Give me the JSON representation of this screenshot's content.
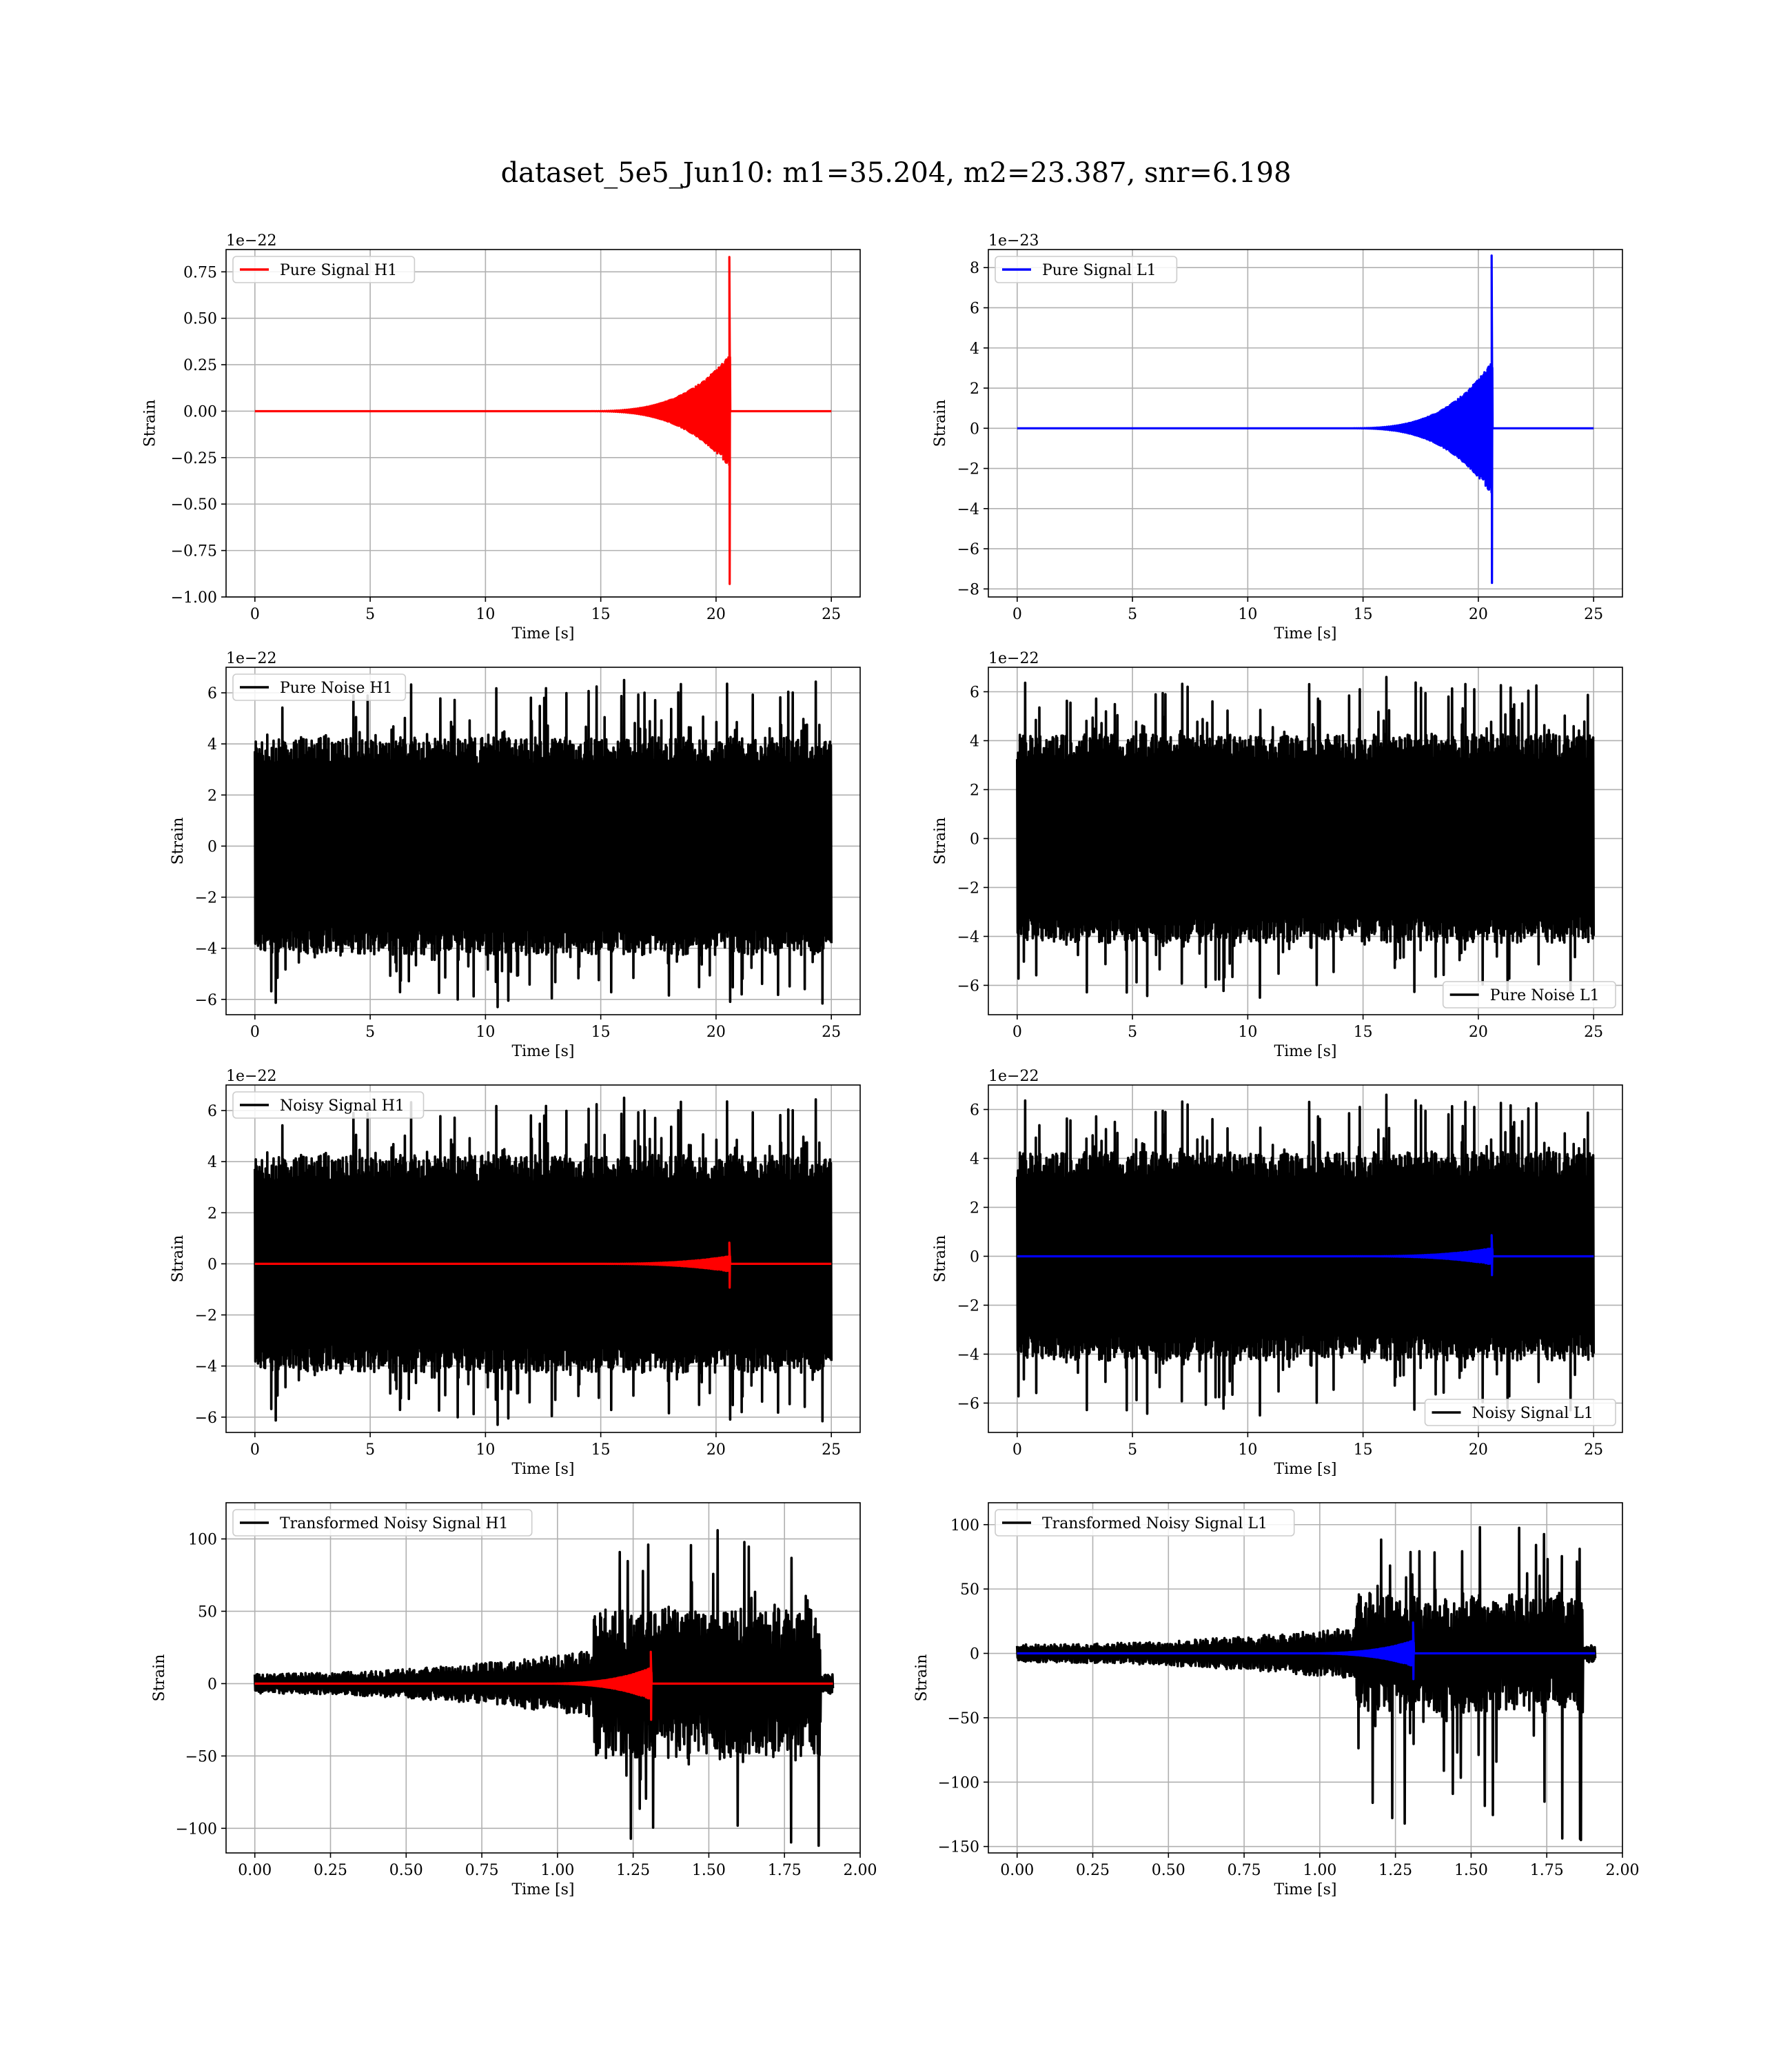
{
  "figure": {
    "suptitle": "dataset_5e5_Jun10: m1=35.204, m2=23.387, snr=6.198"
  },
  "colors": {
    "h1_signal": "#ff0000",
    "l1_signal": "#0000ff",
    "noise": "#000000"
  },
  "chart_data": [
    {
      "id": "pure-signal-h1",
      "type": "line",
      "xlabel": "Time [s]",
      "ylabel": "Strain",
      "offset_text": "1e−22",
      "xlim": [
        -1.25,
        26.25
      ],
      "ylim": [
        -1.0,
        0.87
      ],
      "xticks": [
        0,
        5,
        10,
        15,
        20,
        25
      ],
      "xtick_labels": [
        "0",
        "5",
        "10",
        "15",
        "20",
        "25"
      ],
      "yticks": [
        -1.0,
        -0.75,
        -0.5,
        -0.25,
        0.0,
        0.25,
        0.5,
        0.75
      ],
      "ytick_labels": [
        "−1.00",
        "−0.75",
        "−0.50",
        "−0.25",
        "0.00",
        "0.25",
        "0.50",
        "0.75"
      ],
      "grid": true,
      "legend_loc": "upper-left",
      "series": [
        {
          "name": "Pure Signal H1",
          "kind": "chirp",
          "color": "#ff0000",
          "x_range": [
            0,
            25
          ],
          "t_merge": 20.6,
          "peak_max": 0.83,
          "peak_min": -0.93,
          "inspiral_amp": 0.3,
          "onset": 14,
          "in_legend": true
        }
      ]
    },
    {
      "id": "pure-signal-l1",
      "type": "line",
      "xlabel": "Time [s]",
      "ylabel": "Strain",
      "offset_text": "1e−23",
      "xlim": [
        -1.25,
        26.25
      ],
      "ylim": [
        -8.4,
        8.9
      ],
      "xticks": [
        0,
        5,
        10,
        15,
        20,
        25
      ],
      "xtick_labels": [
        "0",
        "5",
        "10",
        "15",
        "20",
        "25"
      ],
      "yticks": [
        -8,
        -6,
        -4,
        -2,
        0,
        2,
        4,
        6,
        8
      ],
      "ytick_labels": [
        "−8",
        "−6",
        "−4",
        "−2",
        "0",
        "2",
        "4",
        "6",
        "8"
      ],
      "grid": true,
      "legend_loc": "upper-left",
      "series": [
        {
          "name": "Pure Signal L1",
          "kind": "chirp",
          "color": "#0000ff",
          "x_range": [
            0,
            25
          ],
          "t_merge": 20.6,
          "peak_max": 8.6,
          "peak_min": -7.7,
          "inspiral_amp": 3.3,
          "onset": 14,
          "in_legend": true
        }
      ]
    },
    {
      "id": "pure-noise-h1",
      "type": "line",
      "xlabel": "Time [s]",
      "ylabel": "Strain",
      "offset_text": "1e−22",
      "xlim": [
        -1.25,
        26.25
      ],
      "ylim": [
        -6.6,
        7.0
      ],
      "xticks": [
        0,
        5,
        10,
        15,
        20,
        25
      ],
      "xtick_labels": [
        "0",
        "5",
        "10",
        "15",
        "20",
        "25"
      ],
      "yticks": [
        -6,
        -4,
        -2,
        0,
        2,
        4,
        6
      ],
      "ytick_labels": [
        "−6",
        "−4",
        "−2",
        "0",
        "2",
        "4",
        "6"
      ],
      "grid": true,
      "legend_loc": "upper-left",
      "series": [
        {
          "name": "Pure Noise H1",
          "kind": "noise",
          "color": "#000000",
          "x_range": [
            0,
            25
          ],
          "band": 3.7,
          "spike_max": 6.5,
          "spike_min": -6.3,
          "seed": 11,
          "in_legend": true
        }
      ]
    },
    {
      "id": "pure-noise-l1",
      "type": "line",
      "xlabel": "Time [s]",
      "ylabel": "Strain",
      "offset_text": "1e−22",
      "xlim": [
        -1.25,
        26.25
      ],
      "ylim": [
        -7.2,
        7.0
      ],
      "xticks": [
        0,
        5,
        10,
        15,
        20,
        25
      ],
      "xtick_labels": [
        "0",
        "5",
        "10",
        "15",
        "20",
        "25"
      ],
      "yticks": [
        -6,
        -4,
        -2,
        0,
        2,
        4,
        6
      ],
      "ytick_labels": [
        "−6",
        "−4",
        "−2",
        "0",
        "2",
        "4",
        "6"
      ],
      "grid": true,
      "legend_loc": "lower-right",
      "series": [
        {
          "name": "Pure Noise L1",
          "kind": "noise",
          "color": "#000000",
          "x_range": [
            0,
            25
          ],
          "band": 3.7,
          "spike_max": 6.6,
          "spike_min": -6.5,
          "seed": 23,
          "in_legend": true
        }
      ]
    },
    {
      "id": "noisy-signal-h1",
      "type": "line",
      "xlabel": "Time [s]",
      "ylabel": "Strain",
      "offset_text": "1e−22",
      "xlim": [
        -1.25,
        26.25
      ],
      "ylim": [
        -6.6,
        7.0
      ],
      "xticks": [
        0,
        5,
        10,
        15,
        20,
        25
      ],
      "xtick_labels": [
        "0",
        "5",
        "10",
        "15",
        "20",
        "25"
      ],
      "yticks": [
        -6,
        -4,
        -2,
        0,
        2,
        4,
        6
      ],
      "ytick_labels": [
        "−6",
        "−4",
        "−2",
        "0",
        "2",
        "4",
        "6"
      ],
      "grid": true,
      "legend_loc": "upper-left",
      "series": [
        {
          "name": "Noisy Signal H1",
          "kind": "noise",
          "color": "#000000",
          "x_range": [
            0,
            25
          ],
          "band": 3.7,
          "spike_max": 6.5,
          "spike_min": -6.3,
          "seed": 11,
          "in_legend": true
        },
        {
          "name": "",
          "kind": "chirp",
          "color": "#ff0000",
          "x_range": [
            0,
            25
          ],
          "t_merge": 20.6,
          "peak_max": 0.83,
          "peak_min": -0.93,
          "inspiral_amp": 0.3,
          "onset": 14,
          "in_legend": false
        }
      ]
    },
    {
      "id": "noisy-signal-l1",
      "type": "line",
      "xlabel": "Time [s]",
      "ylabel": "Strain",
      "offset_text": "1e−22",
      "xlim": [
        -1.25,
        26.25
      ],
      "ylim": [
        -7.2,
        7.0
      ],
      "xticks": [
        0,
        5,
        10,
        15,
        20,
        25
      ],
      "xtick_labels": [
        "0",
        "5",
        "10",
        "15",
        "20",
        "25"
      ],
      "yticks": [
        -6,
        -4,
        -2,
        0,
        2,
        4,
        6
      ],
      "ytick_labels": [
        "−6",
        "−4",
        "−2",
        "0",
        "2",
        "4",
        "6"
      ],
      "grid": true,
      "legend_loc": "lower-right",
      "series": [
        {
          "name": "Noisy Signal L1",
          "kind": "noise",
          "color": "#000000",
          "x_range": [
            0,
            25
          ],
          "band": 3.7,
          "spike_max": 6.6,
          "spike_min": -6.5,
          "seed": 23,
          "in_legend": true
        },
        {
          "name": "",
          "kind": "chirp",
          "color": "#0000ff",
          "x_range": [
            0,
            25
          ],
          "t_merge": 20.6,
          "peak_max": 0.86,
          "peak_min": -0.77,
          "inspiral_amp": 0.33,
          "onset": 14,
          "in_legend": false
        }
      ]
    },
    {
      "id": "transformed-noisy-signal-h1",
      "type": "line",
      "xlabel": "Time [s]",
      "ylabel": "Strain",
      "offset_text": "",
      "xlim": [
        -0.095,
        2.0
      ],
      "ylim": [
        -117,
        125
      ],
      "xticks": [
        0.0,
        0.25,
        0.5,
        0.75,
        1.0,
        1.25,
        1.5,
        1.75,
        2.0
      ],
      "xtick_labels": [
        "0.00",
        "0.25",
        "0.50",
        "0.75",
        "1.00",
        "1.25",
        "1.50",
        "1.75",
        "2.00"
      ],
      "yticks": [
        -100,
        -50,
        0,
        50,
        100
      ],
      "ytick_labels": [
        "−100",
        "−50",
        "0",
        "50",
        "100"
      ],
      "grid": true,
      "legend_loc": "upper-left",
      "series": [
        {
          "name": "Transformed Noisy Signal H1",
          "kind": "whitened",
          "color": "#000000",
          "x_range": [
            0,
            1.91
          ],
          "seed": 41,
          "early_amp": 6,
          "grow_to": 20,
          "burst_start": 1.12,
          "burst_end": 1.87,
          "burst_amp": 45,
          "spike_max": 106,
          "spike_min": -112,
          "in_legend": true
        },
        {
          "name": "",
          "kind": "chirp",
          "color": "#ff0000",
          "x_range": [
            0,
            1.91
          ],
          "t_merge": 1.31,
          "peak_max": 22,
          "peak_min": -25,
          "inspiral_amp": 11,
          "onset": 0.9,
          "in_legend": false
        }
      ]
    },
    {
      "id": "transformed-noisy-signal-l1",
      "type": "line",
      "xlabel": "Time [s]",
      "ylabel": "Strain",
      "offset_text": "",
      "xlim": [
        -0.095,
        2.0
      ],
      "ylim": [
        -155,
        117
      ],
      "xticks": [
        0.0,
        0.25,
        0.5,
        0.75,
        1.0,
        1.25,
        1.5,
        1.75,
        2.0
      ],
      "xtick_labels": [
        "0.00",
        "0.25",
        "0.50",
        "0.75",
        "1.00",
        "1.25",
        "1.50",
        "1.75",
        "2.00"
      ],
      "yticks": [
        -150,
        -100,
        -50,
        0,
        50,
        100
      ],
      "ytick_labels": [
        "−150",
        "−100",
        "−50",
        "0",
        "50",
        "100"
      ],
      "grid": true,
      "legend_loc": "upper-left",
      "series": [
        {
          "name": "Transformed Noisy Signal L1",
          "kind": "whitened",
          "color": "#000000",
          "x_range": [
            0,
            1.91
          ],
          "seed": 57,
          "early_amp": 6,
          "grow_to": 18,
          "burst_start": 1.12,
          "burst_end": 1.87,
          "burst_amp": 40,
          "spike_max": 98,
          "spike_min": -145,
          "in_legend": true
        },
        {
          "name": "",
          "kind": "chirp",
          "color": "#0000ff",
          "x_range": [
            0,
            1.91
          ],
          "t_merge": 1.31,
          "peak_max": 24,
          "peak_min": -20,
          "inspiral_amp": 10,
          "onset": 0.9,
          "in_legend": false
        }
      ]
    }
  ]
}
